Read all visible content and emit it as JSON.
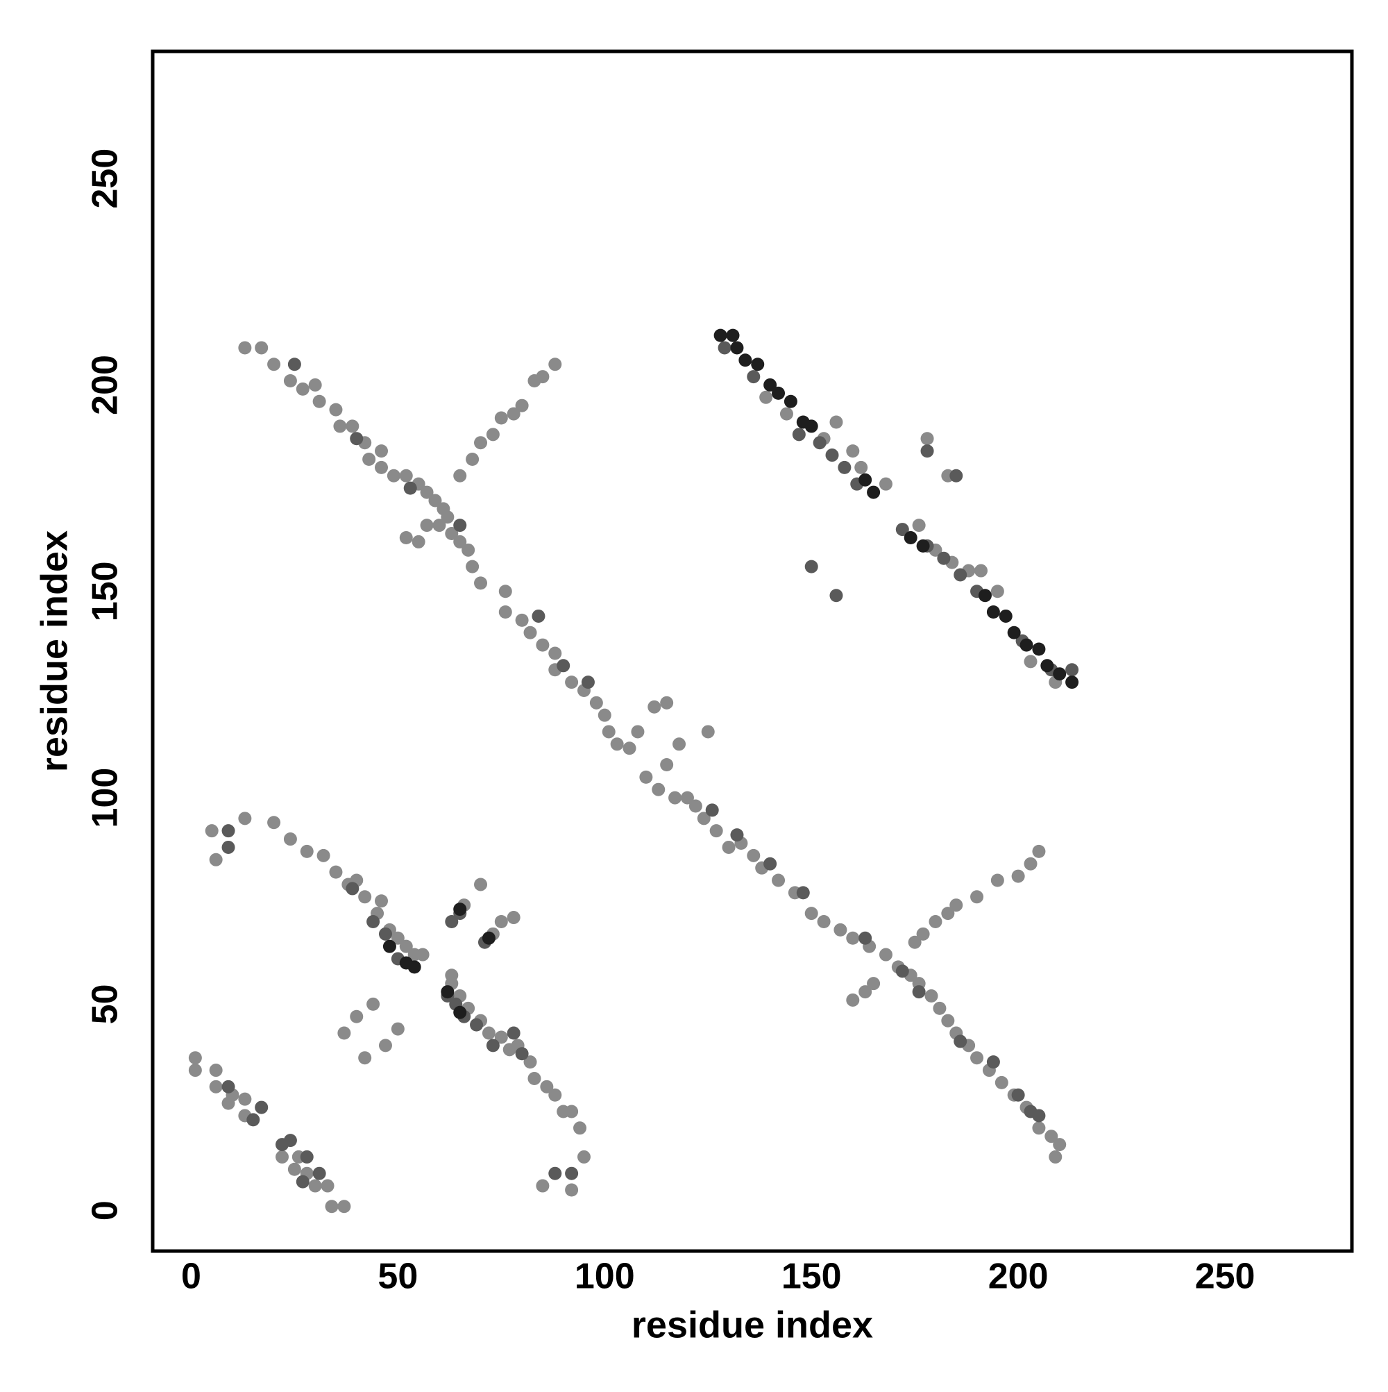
{
  "chart_data": {
    "type": "scatter",
    "xlabel": "residue index",
    "ylabel": "residue index",
    "xlim": [
      -9.3,
      280.7
    ],
    "ylim": [
      -9.8,
      280.8
    ],
    "xticks": [
      0,
      50,
      100,
      150,
      200,
      250
    ],
    "yticks": [
      0,
      50,
      100,
      150,
      200,
      250
    ],
    "grid": false,
    "series": [
      {
        "color": "#8a8a8a",
        "x": [
          13,
          17,
          20,
          24,
          27,
          30,
          31,
          35,
          36,
          39,
          42,
          43,
          46,
          46,
          49,
          52,
          55,
          57,
          59,
          61,
          60,
          62,
          63,
          65,
          67,
          68,
          70,
          76,
          76,
          80,
          82,
          85,
          88,
          88,
          92,
          95,
          98,
          100,
          101,
          103,
          106,
          108,
          112,
          115,
          110,
          113,
          115,
          117,
          120,
          122,
          125,
          118,
          124,
          127,
          130,
          133,
          136,
          138,
          142,
          146,
          150,
          153,
          157,
          160,
          164,
          168,
          171,
          174,
          176,
          179,
          181,
          183,
          185,
          188,
          190,
          193,
          196,
          199,
          202,
          205,
          208,
          209,
          210,
          65,
          68,
          70,
          73,
          75,
          78,
          80,
          83,
          85,
          88,
          52,
          55,
          57,
          175,
          177,
          180,
          183,
          185,
          190,
          195,
          200,
          203,
          205,
          160,
          163,
          165,
          139,
          144,
          153,
          156,
          160,
          162,
          168,
          176,
          180,
          184,
          188,
          191,
          195,
          203,
          209,
          178,
          183,
          5,
          6,
          13,
          20,
          24,
          28,
          32,
          35,
          38,
          40,
          42,
          45,
          46,
          48,
          50,
          52,
          54,
          56,
          37,
          40,
          42,
          44,
          47,
          50,
          63,
          65,
          67,
          70,
          72,
          75,
          77,
          79,
          82,
          83,
          86,
          88,
          90,
          92,
          94,
          95,
          85,
          92,
          66,
          70,
          73,
          75,
          78,
          63,
          1,
          1,
          6,
          6,
          9,
          10,
          13,
          13,
          22,
          25,
          26,
          28,
          30,
          33,
          34,
          37
        ],
        "values": [
          209,
          209,
          205,
          201,
          199,
          200,
          196,
          194,
          190,
          190,
          186,
          182,
          184,
          180,
          178,
          178,
          176,
          174,
          172,
          170,
          166,
          168,
          164,
          162,
          160,
          156,
          152,
          150,
          145,
          143,
          140,
          137,
          135,
          131,
          128,
          126,
          123,
          120,
          116,
          113,
          112,
          116,
          122,
          123,
          105,
          102,
          108,
          100,
          100,
          98,
          116,
          113,
          95,
          92,
          88,
          89,
          86,
          83,
          80,
          77,
          72,
          70,
          68,
          66,
          64,
          62,
          59,
          57,
          55,
          52,
          49,
          46,
          43,
          40,
          37,
          34,
          31,
          28,
          25,
          20,
          18,
          13,
          16,
          178,
          182,
          186,
          188,
          192,
          193,
          195,
          201,
          202,
          205,
          163,
          162,
          166,
          65,
          67,
          70,
          72,
          74,
          76,
          80,
          81,
          84,
          87,
          51,
          53,
          55,
          197,
          193,
          187,
          191,
          184,
          180,
          176,
          166,
          160,
          157,
          155,
          155,
          150,
          133,
          128,
          187,
          178,
          92,
          85,
          95,
          94,
          90,
          87,
          86,
          82,
          79,
          80,
          76,
          72,
          75,
          68,
          66,
          64,
          62,
          62,
          43,
          47,
          37,
          50,
          40,
          44,
          55,
          52,
          49,
          46,
          43,
          42,
          39,
          40,
          36,
          32,
          30,
          28,
          24,
          24,
          20,
          13,
          6,
          5,
          74,
          79,
          67,
          70,
          71,
          57,
          37,
          34,
          34,
          30,
          26,
          28,
          27,
          23,
          13,
          10,
          13,
          9,
          6,
          6,
          1,
          1
        ]
      },
      {
        "color": "#5a5a5a",
        "x": [
          25,
          40,
          53,
          65,
          84,
          90,
          96,
          126,
          132,
          140,
          148,
          163,
          172,
          176,
          186,
          194,
          200,
          203,
          205,
          129,
          136,
          147,
          152,
          155,
          158,
          161,
          172,
          178,
          182,
          186,
          190,
          201,
          208,
          213,
          150,
          156,
          178,
          185,
          9,
          9,
          39,
          44,
          47,
          50,
          62,
          64,
          66,
          69,
          73,
          78,
          80,
          88,
          92,
          65,
          71,
          63,
          9,
          15,
          17,
          22,
          24,
          27,
          28,
          31
        ],
        "values": [
          205,
          187,
          175,
          166,
          144,
          132,
          128,
          97,
          91,
          84,
          77,
          66,
          58,
          53,
          41,
          36,
          28,
          24,
          23,
          209,
          202,
          188,
          186,
          183,
          180,
          176,
          165,
          161,
          158,
          154,
          150,
          138,
          131,
          131,
          156,
          149,
          184,
          178,
          88,
          92,
          78,
          70,
          67,
          61,
          52,
          50,
          47,
          45,
          40,
          43,
          38,
          9,
          9,
          72,
          65,
          70,
          30,
          22,
          25,
          16,
          17,
          7,
          13,
          9
        ]
      },
      {
        "color": "#1e1e1e",
        "x": [
          128,
          131,
          132,
          134,
          137,
          140,
          142,
          145,
          148,
          150,
          163,
          165,
          174,
          177,
          192,
          194,
          197,
          199,
          202,
          205,
          207,
          210,
          213,
          52,
          54,
          62,
          65,
          72,
          65,
          48
        ],
        "values": [
          212,
          212,
          209,
          206,
          205,
          200,
          198,
          196,
          191,
          190,
          177,
          174,
          163,
          161,
          149,
          145,
          144,
          140,
          137,
          136,
          132,
          130,
          128,
          60,
          59,
          53,
          48,
          66,
          73,
          64
        ]
      }
    ]
  }
}
